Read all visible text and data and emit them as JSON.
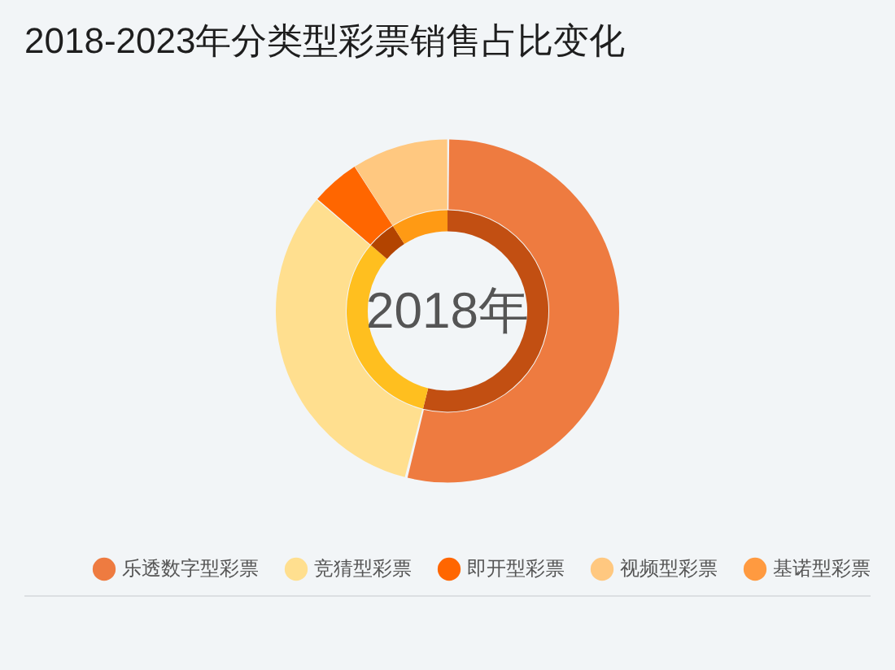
{
  "chart_data": {
    "type": "donut",
    "title": "2018-2023年分类型彩票销售占比变化",
    "categories": [
      "乐透数字型彩票",
      "竞猜型彩票",
      "即开型彩票",
      "视频型彩票",
      "基诺型彩票"
    ],
    "series": [
      {
        "values": [
          53.9,
          32.4,
          4.6,
          9.1,
          0
        ],
        "colors": [
          "#ee7b40",
          "#ffdf8f",
          "#ff6600",
          "#ffc880",
          "#ff9a40"
        ]
      },
      {
        "values": [
          53.9,
          32.4,
          4.6,
          9.1,
          0
        ],
        "colors": [
          "#c24f12",
          "#ffbf1f",
          "#b34400",
          "#ff9a14",
          "#d96b1a"
        ]
      }
    ],
    "legend": "bottom",
    "annotations": [
      "2018年"
    ]
  }
}
